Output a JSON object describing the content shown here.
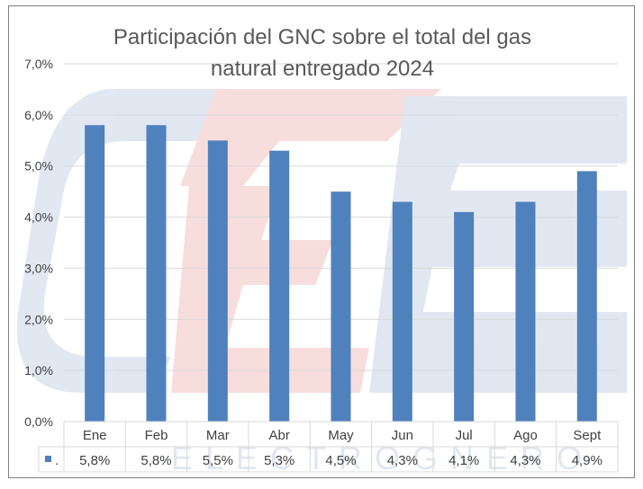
{
  "chart_data": {
    "type": "bar",
    "title_line1": "Participación del GNC sobre el total del gas",
    "title_line2": "natural entregado 2024",
    "categories": [
      "Ene",
      "Feb",
      "Mar",
      "Abr",
      "May",
      "Jun",
      "Jul",
      "Ago",
      "Sept"
    ],
    "series": [
      {
        "name": ".",
        "values": [
          5.8,
          5.8,
          5.5,
          5.3,
          4.5,
          4.3,
          4.1,
          4.3,
          4.9
        ],
        "value_labels": [
          "5,8%",
          "5,8%",
          "5,5%",
          "5,3%",
          "4,5%",
          "4,3%",
          "4,1%",
          "4,3%",
          "4,9%"
        ],
        "color": "#4f81bd"
      }
    ],
    "ylim": [
      0,
      7
    ],
    "yticks": [
      "0,0%",
      "1,0%",
      "2,0%",
      "3,0%",
      "4,0%",
      "5,0%",
      "6,0%",
      "7,0%"
    ],
    "grid": true,
    "legend": "data-table",
    "watermark_text": "ELECTROGNERO"
  }
}
